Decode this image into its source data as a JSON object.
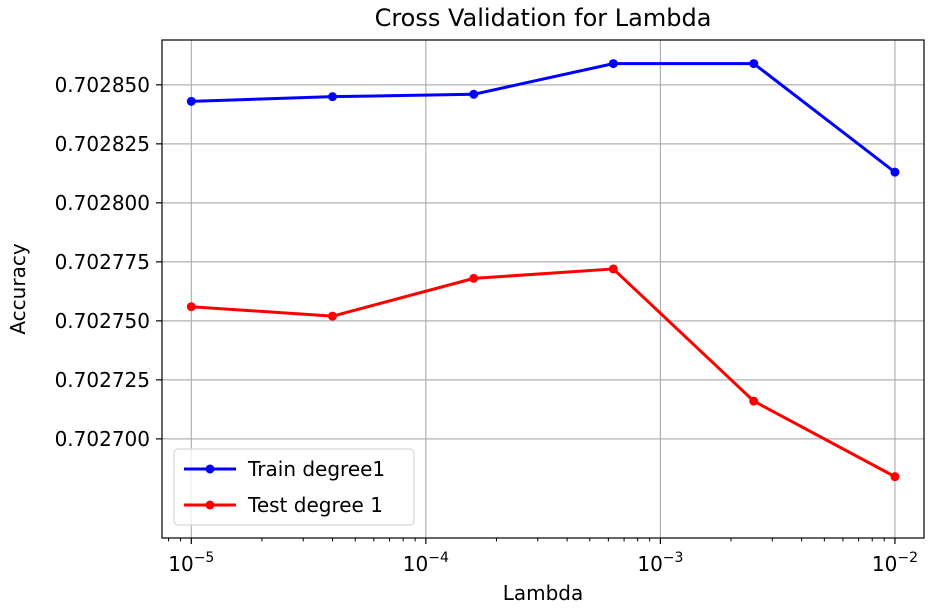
{
  "chart_data": {
    "type": "line",
    "title": "Cross Validation for Lambda",
    "xlabel": "Lambda",
    "ylabel": "Accuracy",
    "xscale": "log",
    "xlim": [
      7.5e-06,
      0.0133
    ],
    "ylim": [
      0.702658,
      0.702869
    ],
    "grid": true,
    "legend_position": "lower-left",
    "x_ticks": [
      {
        "value": 1e-05,
        "base": "10",
        "exp": "−5"
      },
      {
        "value": 0.0001,
        "base": "10",
        "exp": "−4"
      },
      {
        "value": 0.001,
        "base": "10",
        "exp": "−3"
      },
      {
        "value": 0.01,
        "base": "10",
        "exp": "−2"
      }
    ],
    "y_ticks": [
      "0.702700",
      "0.702725",
      "0.702750",
      "0.702775",
      "0.702800",
      "0.702825",
      "0.702850"
    ],
    "x": [
      1e-05,
      4e-05,
      0.00016,
      0.00063,
      0.0025,
      0.01
    ],
    "series": [
      {
        "name": "Train degree1",
        "color": "#0000ff",
        "values": [
          0.702843,
          0.702845,
          0.702846,
          0.702859,
          0.702859,
          0.702813
        ]
      },
      {
        "name": "Test degree 1",
        "color": "#ff0000",
        "values": [
          0.702756,
          0.702752,
          0.702768,
          0.702772,
          0.702716,
          0.702684
        ]
      }
    ]
  }
}
